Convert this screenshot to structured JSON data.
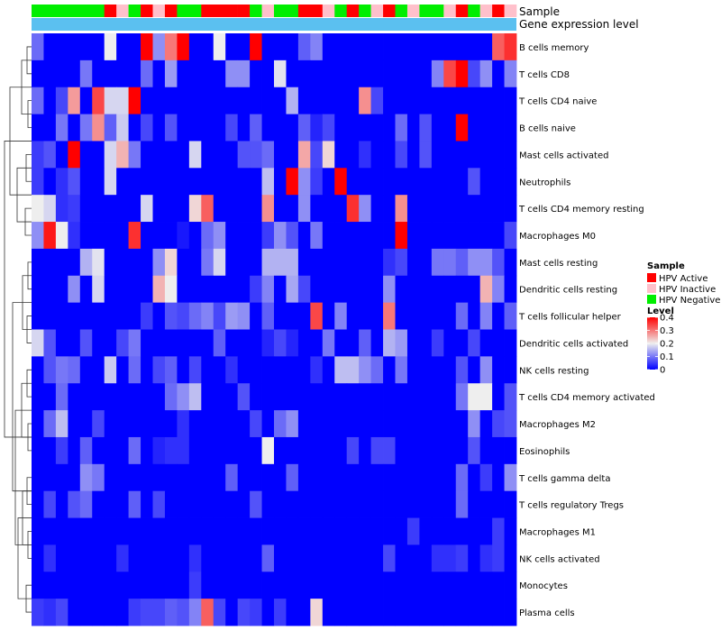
{
  "chart_data": {
    "type": "heatmap",
    "annotation_tracks": [
      "Sample",
      "Gene expression level"
    ],
    "rows": [
      "B cells memory",
      "T cells CD8",
      "T cells CD4 naive",
      "B cells naive",
      "Mast cells activated",
      "Neutrophils",
      "T cells CD4 memory resting",
      "Macrophages M0",
      "Mast cells resting",
      "Dendritic cells resting",
      "T cells follicular helper",
      "Dendritic cells activated",
      "NK cells resting",
      "T cells CD4 memory activated",
      "Macrophages M2",
      "Eosinophils",
      "T cells gamma delta",
      "T cells regulatory  Tregs",
      "Macrophages M1",
      "NK cells activated",
      "Monocytes",
      "Plasma cells"
    ],
    "sample_groups": [
      "HPV Negative",
      "HPV Negative",
      "HPV Negative",
      "HPV Negative",
      "HPV Negative",
      "HPV Negative",
      "HPV Active",
      "HPV Inactive",
      "HPV Negative",
      "HPV Active",
      "HPV Inactive",
      "HPV Active",
      "HPV Negative",
      "HPV Negative",
      "HPV Active",
      "HPV Active",
      "HPV Active",
      "HPV Active",
      "HPV Negative",
      "HPV Inactive",
      "HPV Negative",
      "HPV Negative",
      "HPV Active",
      "HPV Active",
      "HPV Inactive",
      "HPV Negative",
      "HPV Active",
      "HPV Negative",
      "HPV Inactive",
      "HPV Active",
      "HPV Negative",
      "HPV Inactive",
      "HPV Negative",
      "HPV Negative",
      "HPV Inactive",
      "HPV Active",
      "HPV Negative",
      "HPV Inactive",
      "HPV Active",
      "HPV Inactive"
    ],
    "values": [
      [
        0.09,
        0.0,
        0.0,
        0.0,
        0.0,
        0.0,
        0.2,
        0.0,
        0.0,
        0.4,
        0.12,
        0.3,
        0.4,
        0.0,
        0.0,
        0.2,
        0.0,
        0.0,
        0.4,
        0.0,
        0.0,
        0.0,
        0.08,
        0.11,
        0.0,
        0.0,
        0.0,
        0.0,
        0.0,
        0.0,
        0.0,
        0.0,
        0.0,
        0.0,
        0.0,
        0.0,
        0.0,
        0.0,
        0.32,
        0.36
      ],
      [
        0.0,
        0.0,
        0.0,
        0.0,
        0.1,
        0.0,
        0.0,
        0.0,
        0.0,
        0.09,
        0.0,
        0.13,
        0.0,
        0.0,
        0.0,
        0.0,
        0.12,
        0.12,
        0.0,
        0.0,
        0.19,
        0.0,
        0.0,
        0.0,
        0.0,
        0.0,
        0.0,
        0.0,
        0.0,
        0.0,
        0.0,
        0.0,
        0.0,
        0.11,
        0.34,
        0.4,
        0.06,
        0.12,
        0.0,
        0.11
      ],
      [
        0.09,
        0.0,
        0.06,
        0.27,
        0.0,
        0.34,
        0.18,
        0.18,
        0.4,
        0.0,
        0.0,
        0.0,
        0.0,
        0.0,
        0.0,
        0.0,
        0.0,
        0.0,
        0.0,
        0.0,
        0.0,
        0.15,
        0.0,
        0.0,
        0.0,
        0.0,
        0.0,
        0.28,
        0.06,
        0.0,
        0.0,
        0.0,
        0.0,
        0.0,
        0.0,
        0.0,
        0.0,
        0.0,
        0.0,
        0.0
      ],
      [
        0.0,
        0.0,
        0.1,
        0.0,
        0.1,
        0.28,
        0.08,
        0.17,
        0.0,
        0.06,
        0.0,
        0.07,
        0.0,
        0.0,
        0.0,
        0.0,
        0.06,
        0.0,
        0.08,
        0.0,
        0.0,
        0.0,
        0.08,
        0.03,
        0.06,
        0.0,
        0.0,
        0.0,
        0.0,
        0.0,
        0.09,
        0.0,
        0.07,
        0.0,
        0.0,
        0.4,
        0.0,
        0.0,
        0.0,
        0.0
      ],
      [
        0.05,
        0.07,
        0.0,
        0.4,
        0.0,
        0.0,
        0.18,
        0.25,
        0.1,
        0.0,
        0.0,
        0.0,
        0.0,
        0.18,
        0.0,
        0.0,
        0.0,
        0.07,
        0.07,
        0.09,
        0.0,
        0.0,
        0.26,
        0.06,
        0.22,
        0.0,
        0.0,
        0.04,
        0.0,
        0.0,
        0.06,
        0.0,
        0.07,
        0.0,
        0.0,
        0.0,
        0.0,
        0.0,
        0.0,
        0.0
      ],
      [
        0.05,
        0.0,
        0.04,
        0.07,
        0.0,
        0.0,
        0.18,
        0.0,
        0.0,
        0.0,
        0.0,
        0.0,
        0.0,
        0.0,
        0.0,
        0.0,
        0.0,
        0.0,
        0.0,
        0.16,
        0.0,
        0.4,
        0.12,
        0.05,
        0.0,
        0.4,
        0.0,
        0.0,
        0.0,
        0.0,
        0.0,
        0.0,
        0.0,
        0.0,
        0.0,
        0.0,
        0.07,
        0.0,
        0.0,
        0.0
      ],
      [
        0.2,
        0.18,
        0.04,
        0.05,
        0.0,
        0.0,
        0.0,
        0.0,
        0.0,
        0.18,
        0.0,
        0.0,
        0.0,
        0.22,
        0.32,
        0.0,
        0.0,
        0.0,
        0.0,
        0.28,
        0.0,
        0.0,
        0.12,
        0.0,
        0.0,
        0.0,
        0.36,
        0.12,
        0.0,
        0.0,
        0.28,
        0.0,
        0.0,
        0.0,
        0.0,
        0.0,
        0.0,
        0.0,
        0.0,
        0.0
      ],
      [
        0.12,
        0.38,
        0.2,
        0.04,
        0.0,
        0.0,
        0.0,
        0.0,
        0.36,
        0.0,
        0.0,
        0.0,
        0.02,
        0.0,
        0.09,
        0.12,
        0.0,
        0.0,
        0.0,
        0.05,
        0.12,
        0.07,
        0.0,
        0.1,
        0.0,
        0.0,
        0.0,
        0.0,
        0.0,
        0.0,
        0.4,
        0.0,
        0.0,
        0.0,
        0.0,
        0.0,
        0.0,
        0.0,
        0.0,
        0.06
      ],
      [
        0.0,
        0.0,
        0.0,
        0.0,
        0.15,
        0.19,
        0.0,
        0.0,
        0.0,
        0.0,
        0.12,
        0.22,
        0.0,
        0.0,
        0.1,
        0.18,
        0.0,
        0.0,
        0.0,
        0.15,
        0.15,
        0.15,
        0.0,
        0.0,
        0.0,
        0.0,
        0.0,
        0.0,
        0.0,
        0.04,
        0.06,
        0.0,
        0.0,
        0.1,
        0.1,
        0.08,
        0.12,
        0.12,
        0.07,
        0.0
      ],
      [
        0.0,
        0.0,
        0.0,
        0.12,
        0.0,
        0.18,
        0.0,
        0.0,
        0.0,
        0.0,
        0.25,
        0.2,
        0.0,
        0.0,
        0.0,
        0.0,
        0.0,
        0.0,
        0.05,
        0.11,
        0.0,
        0.14,
        0.06,
        0.0,
        0.0,
        0.0,
        0.0,
        0.0,
        0.0,
        0.12,
        0.0,
        0.0,
        0.0,
        0.0,
        0.0,
        0.0,
        0.0,
        0.25,
        0.11,
        0.0
      ],
      [
        0.0,
        0.0,
        0.0,
        0.0,
        0.0,
        0.0,
        0.0,
        0.0,
        0.0,
        0.05,
        0.0,
        0.07,
        0.06,
        0.09,
        0.11,
        0.06,
        0.13,
        0.12,
        0.0,
        0.08,
        0.0,
        0.0,
        0.0,
        0.34,
        0.0,
        0.11,
        0.0,
        0.0,
        0.0,
        0.3,
        0.0,
        0.0,
        0.0,
        0.0,
        0.0,
        0.09,
        0.0,
        0.11,
        0.0,
        0.08
      ],
      [
        0.18,
        0.07,
        0.0,
        0.0,
        0.07,
        0.0,
        0.0,
        0.06,
        0.1,
        0.0,
        0.0,
        0.0,
        0.0,
        0.0,
        0.0,
        0.08,
        0.0,
        0.0,
        0.0,
        0.03,
        0.06,
        0.03,
        0.0,
        0.0,
        0.1,
        0.0,
        0.0,
        0.08,
        0.0,
        0.15,
        0.13,
        0.0,
        0.0,
        0.05,
        0.0,
        0.0,
        0.06,
        0.0,
        0.0,
        0.0
      ],
      [
        0.0,
        0.07,
        0.1,
        0.09,
        0.0,
        0.0,
        0.17,
        0.0,
        0.09,
        0.0,
        0.06,
        0.08,
        0.0,
        0.06,
        0.0,
        0.0,
        0.04,
        0.0,
        0.0,
        0.0,
        0.0,
        0.0,
        0.0,
        0.04,
        0.0,
        0.16,
        0.16,
        0.12,
        0.09,
        0.0,
        0.1,
        0.0,
        0.0,
        0.0,
        0.0,
        0.07,
        0.0,
        0.12,
        0.0,
        0.0
      ],
      [
        0.0,
        0.0,
        0.09,
        0.0,
        0.0,
        0.0,
        0.0,
        0.0,
        0.0,
        0.0,
        0.0,
        0.09,
        0.12,
        0.16,
        0.0,
        0.0,
        0.0,
        0.07,
        0.0,
        0.0,
        0.0,
        0.0,
        0.0,
        0.0,
        0.0,
        0.0,
        0.0,
        0.0,
        0.0,
        0.0,
        0.0,
        0.0,
        0.0,
        0.0,
        0.0,
        0.1,
        0.2,
        0.2,
        0.0,
        0.07
      ],
      [
        0.0,
        0.09,
        0.16,
        0.0,
        0.0,
        0.06,
        0.0,
        0.0,
        0.0,
        0.0,
        0.0,
        0.0,
        0.04,
        0.0,
        0.0,
        0.0,
        0.0,
        0.0,
        0.06,
        0.0,
        0.09,
        0.12,
        0.0,
        0.0,
        0.0,
        0.0,
        0.0,
        0.0,
        0.0,
        0.0,
        0.0,
        0.0,
        0.0,
        0.0,
        0.0,
        0.0,
        0.12,
        0.0,
        0.06,
        0.07
      ],
      [
        0.0,
        0.0,
        0.05,
        0.0,
        0.08,
        0.0,
        0.0,
        0.0,
        0.09,
        0.0,
        0.03,
        0.04,
        0.04,
        0.0,
        0.0,
        0.0,
        0.0,
        0.0,
        0.0,
        0.2,
        0.0,
        0.0,
        0.0,
        0.0,
        0.0,
        0.0,
        0.06,
        0.0,
        0.06,
        0.06,
        0.0,
        0.0,
        0.0,
        0.0,
        0.0,
        0.0,
        0.07,
        0.0,
        0.0,
        0.0
      ],
      [
        0.0,
        0.0,
        0.0,
        0.0,
        0.12,
        0.1,
        0.0,
        0.0,
        0.0,
        0.0,
        0.0,
        0.0,
        0.0,
        0.0,
        0.0,
        0.0,
        0.08,
        0.0,
        0.0,
        0.0,
        0.0,
        0.08,
        0.0,
        0.0,
        0.0,
        0.0,
        0.0,
        0.0,
        0.0,
        0.0,
        0.0,
        0.0,
        0.0,
        0.0,
        0.0,
        0.09,
        0.0,
        0.05,
        0.0,
        0.12
      ],
      [
        0.0,
        0.06,
        0.0,
        0.07,
        0.09,
        0.0,
        0.0,
        0.0,
        0.08,
        0.0,
        0.06,
        0.0,
        0.0,
        0.0,
        0.0,
        0.0,
        0.0,
        0.0,
        0.07,
        0.0,
        0.0,
        0.0,
        0.0,
        0.0,
        0.0,
        0.0,
        0.0,
        0.0,
        0.0,
        0.0,
        0.0,
        0.0,
        0.0,
        0.0,
        0.0,
        0.09,
        0.0,
        0.0,
        0.0,
        0.0
      ],
      [
        0.0,
        0.0,
        0.0,
        0.0,
        0.0,
        0.0,
        0.0,
        0.0,
        0.0,
        0.0,
        0.0,
        0.0,
        0.0,
        0.0,
        0.0,
        0.0,
        0.0,
        0.0,
        0.0,
        0.0,
        0.0,
        0.0,
        0.0,
        0.0,
        0.0,
        0.0,
        0.0,
        0.0,
        0.0,
        0.0,
        0.0,
        0.05,
        0.0,
        0.0,
        0.0,
        0.0,
        0.0,
        0.0,
        0.05,
        0.0
      ],
      [
        0.0,
        0.04,
        0.0,
        0.0,
        0.0,
        0.0,
        0.0,
        0.04,
        0.0,
        0.0,
        0.0,
        0.0,
        0.0,
        0.04,
        0.0,
        0.0,
        0.0,
        0.0,
        0.0,
        0.08,
        0.0,
        0.0,
        0.0,
        0.0,
        0.0,
        0.0,
        0.0,
        0.0,
        0.0,
        0.06,
        0.0,
        0.0,
        0.0,
        0.04,
        0.04,
        0.05,
        0.0,
        0.04,
        0.05,
        0.0
      ],
      [
        0.0,
        0.0,
        0.0,
        0.0,
        0.0,
        0.0,
        0.0,
        0.0,
        0.0,
        0.0,
        0.0,
        0.0,
        0.0,
        0.05,
        0.0,
        0.0,
        0.0,
        0.0,
        0.0,
        0.0,
        0.0,
        0.0,
        0.0,
        0.0,
        0.0,
        0.0,
        0.0,
        0.0,
        0.0,
        0.0,
        0.0,
        0.0,
        0.0,
        0.0,
        0.0,
        0.0,
        0.0,
        0.0,
        0.0,
        0.0
      ],
      [
        0.05,
        0.04,
        0.06,
        0.0,
        0.0,
        0.0,
        0.0,
        0.0,
        0.05,
        0.06,
        0.06,
        0.08,
        0.07,
        0.11,
        0.32,
        0.06,
        0.0,
        0.06,
        0.05,
        0.0,
        0.05,
        0.0,
        0.0,
        0.22,
        0.0,
        0.0,
        0.0,
        0.0,
        0.0,
        0.0,
        0.0,
        0.0,
        0.0,
        0.0,
        0.0,
        0.0,
        0.0,
        0.0,
        0.0,
        0.0
      ]
    ],
    "legend": {
      "position": "right",
      "sample_title": "Sample",
      "sample_entries": [
        {
          "name": "HPV Active",
          "color": "#ff0000"
        },
        {
          "name": "HPV Inactive",
          "color": "#ffc0cb"
        },
        {
          "name": "HPV Negative",
          "color": "#00ee00"
        }
      ],
      "level_title": "Level",
      "level_ticks": [
        "0.4",
        "0.3",
        "0.2",
        "0.1",
        "0"
      ],
      "level_range": [
        0,
        0.4
      ]
    },
    "expression_track_color": "#5bc0f0",
    "color_scale": {
      "low": "#0000ff",
      "mid": "#eeeeee",
      "high": "#ff0000"
    }
  }
}
